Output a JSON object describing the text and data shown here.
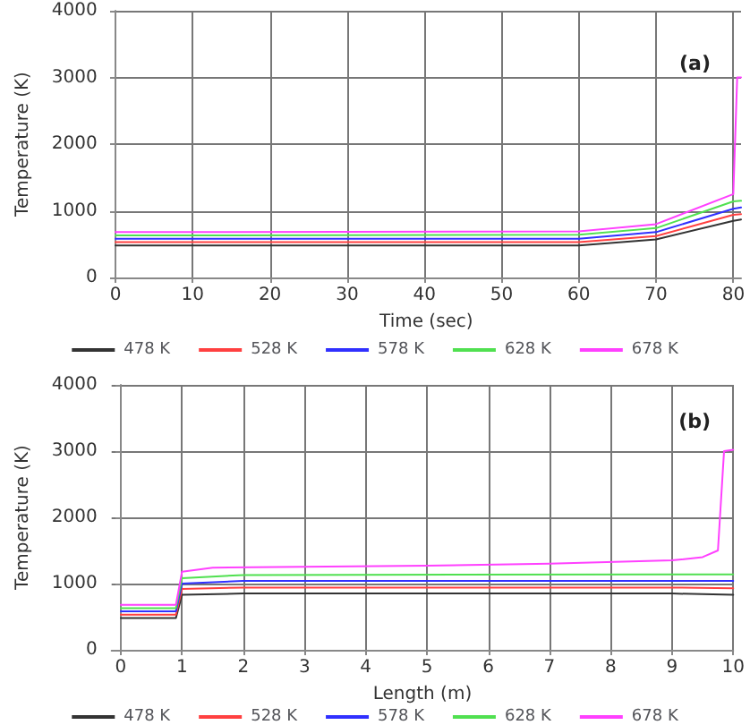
{
  "chart_data": [
    {
      "type": "line",
      "xlabel": "Time (sec)",
      "ylabel": "Temperature (K)",
      "annotations": [
        "(a)"
      ],
      "xlim": [
        -0.5,
        81
      ],
      "ylim": [
        0,
        4000
      ],
      "xticks": [
        0,
        10,
        20,
        30,
        40,
        50,
        60,
        70,
        80
      ],
      "yticks": [
        0,
        1000,
        2000,
        3000,
        4000
      ],
      "grid": true,
      "legend": "bottom",
      "marker": "none",
      "line_style": "solid",
      "x": [
        0,
        60,
        70,
        80,
        81
      ],
      "series": [
        {
          "name": "478 K",
          "color": "#333333",
          "values": [
            480,
            480,
            570,
            850,
            870
          ]
        },
        {
          "name": "528 K",
          "color": "#ff4040",
          "values": [
            530,
            530,
            620,
            940,
            950
          ]
        },
        {
          "name": "578 K",
          "color": "#3030ff",
          "values": [
            580,
            580,
            680,
            1030,
            1050
          ]
        },
        {
          "name": "628 K",
          "color": "#50e050",
          "values": [
            630,
            640,
            740,
            1140,
            1150
          ]
        },
        {
          "name": "678 K",
          "color": "#ff40ff",
          "x": [
            0,
            60,
            70,
            80,
            80.5,
            81
          ],
          "values": [
            680,
            690,
            800,
            1250,
            3000,
            3000
          ]
        }
      ]
    },
    {
      "type": "line",
      "xlabel": "Length (m)",
      "ylabel": "Temperature (K)",
      "annotations": [
        "(b)"
      ],
      "xlim": [
        -0.15,
        10
      ],
      "ylim": [
        0,
        4000
      ],
      "xticks": [
        0,
        1,
        2,
        3,
        4,
        5,
        6,
        7,
        8,
        9,
        10
      ],
      "yticks": [
        0,
        1000,
        2000,
        3000,
        4000
      ],
      "grid": true,
      "legend": "bottom",
      "marker": "none",
      "line_style": "solid",
      "x": [
        0,
        0.9,
        1,
        2,
        9,
        10
      ],
      "series": [
        {
          "name": "478 K",
          "color": "#333333",
          "values": [
            480,
            480,
            830,
            850,
            850,
            830
          ]
        },
        {
          "name": "528 K",
          "color": "#ff4040",
          "values": [
            530,
            530,
            920,
            940,
            940,
            930
          ]
        },
        {
          "name": "578 K",
          "color": "#3030ff",
          "values": [
            580,
            580,
            1000,
            1040,
            1040,
            1040
          ]
        },
        {
          "name": "628 K",
          "color": "#50e050",
          "values": [
            630,
            630,
            1080,
            1130,
            1140,
            1140
          ]
        },
        {
          "name": "678 K",
          "color": "#ff40ff",
          "x": [
            0,
            0.9,
            1,
            1.5,
            5,
            7,
            9,
            9.5,
            9.75,
            9.85,
            10
          ],
          "values": [
            680,
            680,
            1180,
            1240,
            1270,
            1300,
            1350,
            1400,
            1500,
            3000,
            3020
          ]
        }
      ]
    }
  ]
}
